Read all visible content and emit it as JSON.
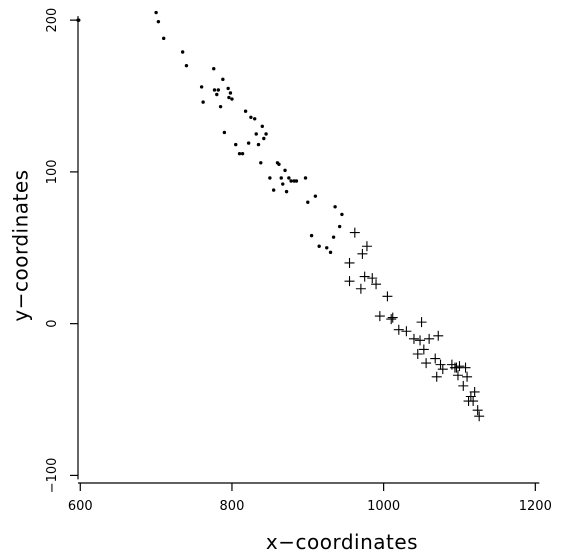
{
  "chart_data": {
    "type": "scatter",
    "title": "",
    "xlabel": "x−coordinates",
    "ylabel": "y−coordinates",
    "xlim": [
      597,
      1222
    ],
    "ylim": [
      -105,
      208
    ],
    "xticks": [
      600,
      800,
      1000,
      1200
    ],
    "yticks": [
      -100,
      0,
      100,
      200
    ],
    "grid": false,
    "legend": "none",
    "series": [
      {
        "marker": "dot",
        "points": [
          [
            597,
            200
          ],
          [
            598,
            200
          ],
          [
            700,
            205
          ],
          [
            703,
            199
          ],
          [
            710,
            188
          ],
          [
            735,
            179
          ],
          [
            740,
            170
          ],
          [
            760,
            156
          ],
          [
            762,
            146
          ],
          [
            776,
            168
          ],
          [
            777,
            154
          ],
          [
            780,
            151
          ],
          [
            782,
            154
          ],
          [
            785,
            143
          ],
          [
            788,
            161
          ],
          [
            790,
            126
          ],
          [
            795,
            155
          ],
          [
            796,
            149
          ],
          [
            798,
            152
          ],
          [
            800,
            148
          ],
          [
            805,
            118
          ],
          [
            810,
            112
          ],
          [
            814,
            112
          ],
          [
            818,
            140
          ],
          [
            822,
            119
          ],
          [
            825,
            136
          ],
          [
            830,
            135
          ],
          [
            832,
            125
          ],
          [
            835,
            118
          ],
          [
            838,
            106
          ],
          [
            840,
            130
          ],
          [
            842,
            122
          ],
          [
            845,
            125
          ],
          [
            850,
            96
          ],
          [
            855,
            88
          ],
          [
            860,
            106
          ],
          [
            862,
            105
          ],
          [
            865,
            96
          ],
          [
            867,
            92
          ],
          [
            870,
            101
          ],
          [
            872,
            87
          ],
          [
            875,
            96
          ],
          [
            878,
            94
          ],
          [
            882,
            94
          ],
          [
            885,
            94
          ],
          [
            897,
            96
          ],
          [
            900,
            80
          ],
          [
            905,
            58
          ],
          [
            910,
            84
          ],
          [
            915,
            51
          ],
          [
            925,
            50
          ],
          [
            930,
            47
          ],
          [
            934,
            57
          ],
          [
            936,
            77
          ],
          [
            942,
            64
          ],
          [
            945,
            72
          ]
        ]
      },
      {
        "marker": "plus",
        "points": [
          [
            955,
            40
          ],
          [
            955,
            28
          ],
          [
            962,
            60
          ],
          [
            970,
            23
          ],
          [
            972,
            46
          ],
          [
            975,
            31
          ],
          [
            978,
            51
          ],
          [
            985,
            30
          ],
          [
            990,
            26
          ],
          [
            995,
            5
          ],
          [
            1005,
            18
          ],
          [
            1010,
            3
          ],
          [
            1012,
            4
          ],
          [
            1020,
            -4
          ],
          [
            1030,
            -5
          ],
          [
            1040,
            -10
          ],
          [
            1045,
            -20
          ],
          [
            1048,
            -11
          ],
          [
            1050,
            1
          ],
          [
            1053,
            -17
          ],
          [
            1056,
            -26
          ],
          [
            1060,
            -10
          ],
          [
            1068,
            -23
          ],
          [
            1070,
            -35
          ],
          [
            1072,
            -8
          ],
          [
            1075,
            -27
          ],
          [
            1078,
            -30
          ],
          [
            1090,
            -27
          ],
          [
            1094,
            -29
          ],
          [
            1096,
            -29
          ],
          [
            1098,
            -34
          ],
          [
            1100,
            -28
          ],
          [
            1105,
            -41
          ],
          [
            1108,
            -29
          ],
          [
            1110,
            -35
          ],
          [
            1112,
            -51
          ],
          [
            1115,
            -48
          ],
          [
            1118,
            -51
          ],
          [
            1120,
            -45
          ],
          [
            1124,
            -57
          ],
          [
            1126,
            -61
          ]
        ]
      }
    ]
  }
}
